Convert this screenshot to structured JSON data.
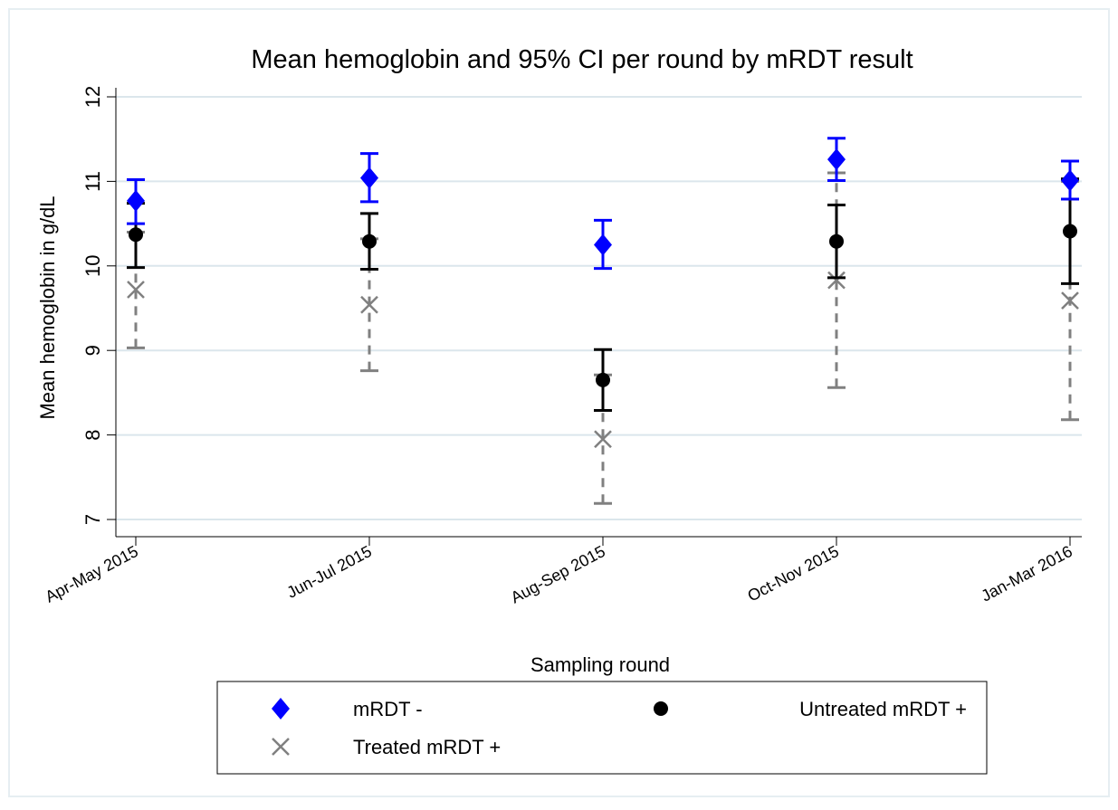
{
  "chart_data": {
    "type": "errorbar",
    "title": "Mean hemoglobin and 95% CI per round by mRDT result",
    "x_label": "Sampling round",
    "y_label": "Mean hemoglobin in g/dL",
    "categories": [
      "Apr-May 2015",
      "Jun-Jul 2015",
      "Aug-Sep 2015",
      "Oct-Nov 2015",
      "Jan-Mar 2016"
    ],
    "ylim": [
      7,
      12
    ],
    "yticks": [
      7,
      8,
      9,
      10,
      11,
      12
    ],
    "grid": true,
    "series": [
      {
        "name": "mRDT -",
        "color": "#0000ff",
        "marker": "diamond",
        "dash": false,
        "values": [
          10.77,
          11.04,
          10.25,
          11.26,
          11.01
        ],
        "low": [
          10.5,
          10.76,
          9.97,
          11.01,
          10.79
        ],
        "high": [
          11.02,
          11.33,
          10.54,
          11.51,
          11.24
        ]
      },
      {
        "name": "Untreated mRDT +",
        "color": "#000000",
        "marker": "circle",
        "dash": false,
        "values": [
          10.37,
          10.29,
          8.65,
          10.29,
          10.41
        ],
        "low": [
          9.98,
          9.96,
          8.29,
          9.86,
          9.79
        ],
        "high": [
          10.74,
          10.62,
          9.01,
          10.72,
          11.03
        ]
      },
      {
        "name": "Treated mRDT +",
        "color": "#808080",
        "marker": "x",
        "dash": true,
        "values": [
          9.72,
          9.54,
          7.95,
          9.83,
          9.59
        ],
        "low": [
          9.03,
          8.76,
          7.19,
          8.56,
          8.18
        ],
        "high": [
          10.4,
          10.32,
          8.71,
          11.1,
          11.0
        ]
      }
    ]
  }
}
